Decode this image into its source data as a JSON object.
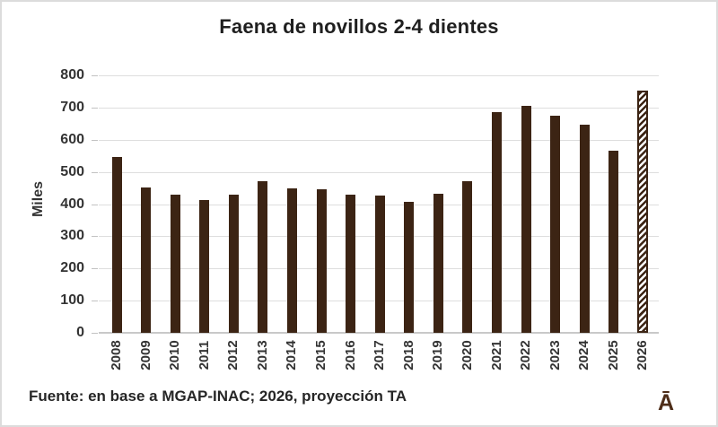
{
  "window": {
    "background_color": "#ffffff",
    "border_color": "#dcdcdc"
  },
  "chart_data": {
    "type": "bar",
    "title": "Faena de novillos 2-4 dientes",
    "xlabel": "",
    "ylabel": "Miles",
    "ylim": [
      0,
      800
    ],
    "ytick_step": 100,
    "yticks": [
      0,
      100,
      200,
      300,
      400,
      500,
      600,
      700,
      800
    ],
    "grid": true,
    "legend": "none",
    "categories": [
      "2008",
      "2009",
      "2010",
      "2011",
      "2012",
      "2013",
      "2014",
      "2015",
      "2016",
      "2017",
      "2018",
      "2019",
      "2020",
      "2021",
      "2022",
      "2023",
      "2024",
      "2025",
      "2026"
    ],
    "values": [
      545,
      452,
      428,
      413,
      430,
      470,
      448,
      445,
      428,
      427,
      406,
      432,
      470,
      686,
      704,
      674,
      647,
      567,
      752
    ],
    "bar_color": "#3c2414",
    "projection_category": "2026",
    "projection_style": "diagonal-hatch-outline"
  },
  "footer": {
    "source_note": "Fuente: en base a MGAP-INAC; 2026, proyección TA",
    "logo_text": "Ā"
  }
}
